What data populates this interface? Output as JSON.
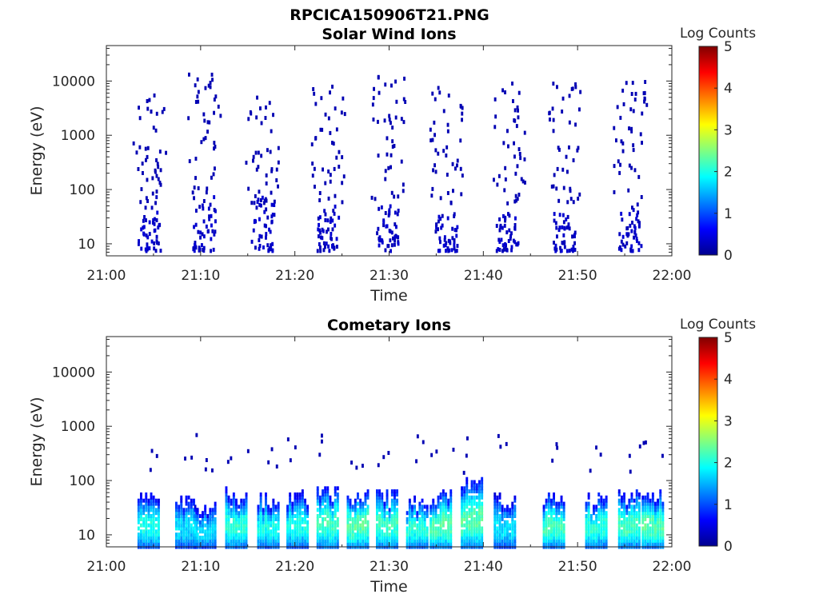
{
  "figure_title": "RPCICA150906T21.PNG",
  "colormap": [
    "#00008f",
    "#0000ff",
    "#0080ff",
    "#00ffff",
    "#80ff80",
    "#ffff00",
    "#ff8000",
    "#ff0000",
    "#800000"
  ],
  "chart_data": [
    {
      "type": "heatmap",
      "title": "Solar Wind Ions",
      "xlabel": "Time",
      "ylabel": "Energy (eV)",
      "x_ticks": [
        "21:00",
        "21:10",
        "21:20",
        "21:30",
        "21:40",
        "21:50",
        "22:00"
      ],
      "y_ticks": [
        "10",
        "100",
        "1000",
        "10000"
      ],
      "y_scale": "log",
      "xlim_minutes": [
        0,
        60
      ],
      "ylim": [
        6,
        45000
      ],
      "colorbar": {
        "label": "Log Counts",
        "ticks": [
          "0",
          "1",
          "2",
          "3",
          "4",
          "5"
        ],
        "range": [
          0,
          5
        ]
      },
      "bursts": [
        {
          "t": 4.5,
          "scatter_min": 60,
          "scatter_max": 6000,
          "low_max": 80,
          "level": 0.2
        },
        {
          "t": 10.3,
          "scatter_min": 60,
          "scatter_max": 15000,
          "low_max": 90,
          "level": 0.2
        },
        {
          "t": 16.5,
          "scatter_min": 60,
          "scatter_max": 6000,
          "low_max": 80,
          "level": 0.2
        },
        {
          "t": 23.5,
          "scatter_min": 60,
          "scatter_max": 12000,
          "low_max": 60,
          "level": 0.2
        },
        {
          "t": 29.8,
          "scatter_min": 60,
          "scatter_max": 15000,
          "low_max": 60,
          "level": 0.2
        },
        {
          "t": 36.0,
          "scatter_min": 60,
          "scatter_max": 10000,
          "low_max": 40,
          "level": 0.2
        },
        {
          "t": 42.5,
          "scatter_min": 60,
          "scatter_max": 12000,
          "low_max": 40,
          "level": 0.2
        },
        {
          "t": 48.5,
          "scatter_min": 60,
          "scatter_max": 10000,
          "low_max": 40,
          "level": 0.2
        },
        {
          "t": 55.5,
          "scatter_min": 60,
          "scatter_max": 14000,
          "low_max": 60,
          "level": 0.2
        }
      ]
    },
    {
      "type": "heatmap",
      "title": "Cometary Ions",
      "xlabel": "Time",
      "ylabel": "Energy (eV)",
      "x_ticks": [
        "21:00",
        "21:10",
        "21:20",
        "21:30",
        "21:40",
        "21:50",
        "22:00"
      ],
      "y_ticks": [
        "10",
        "100",
        "1000",
        "10000"
      ],
      "y_scale": "log",
      "xlim_minutes": [
        0,
        60
      ],
      "ylim": [
        6,
        45000
      ],
      "colorbar": {
        "label": "Log Counts",
        "ticks": [
          "0",
          "1",
          "2",
          "3",
          "4",
          "5"
        ],
        "range": [
          0,
          5
        ]
      },
      "bursts": [
        {
          "t": 4.5,
          "top": 60,
          "level": 1.8
        },
        {
          "t": 8.5,
          "top": 50,
          "level": 1.6
        },
        {
          "t": 10.5,
          "top": 40,
          "level": 1.6
        },
        {
          "t": 13.8,
          "top": 80,
          "level": 1.9
        },
        {
          "t": 17.2,
          "top": 60,
          "level": 1.8
        },
        {
          "t": 20.3,
          "top": 70,
          "level": 1.8
        },
        {
          "t": 23.5,
          "top": 80,
          "level": 2.0
        },
        {
          "t": 26.7,
          "top": 70,
          "level": 2.1
        },
        {
          "t": 29.8,
          "top": 70,
          "level": 2.0
        },
        {
          "t": 33.0,
          "top": 50,
          "level": 1.9
        },
        {
          "t": 35.5,
          "top": 70,
          "level": 2.1
        },
        {
          "t": 38.8,
          "top": 110,
          "level": 2.1
        },
        {
          "t": 42.3,
          "top": 60,
          "level": 1.6
        },
        {
          "t": 47.5,
          "top": 70,
          "level": 2.0
        },
        {
          "t": 52.0,
          "top": 60,
          "level": 1.9
        },
        {
          "t": 55.5,
          "top": 70,
          "level": 2.0
        },
        {
          "t": 58.0,
          "top": 70,
          "level": 2.1
        }
      ]
    }
  ]
}
